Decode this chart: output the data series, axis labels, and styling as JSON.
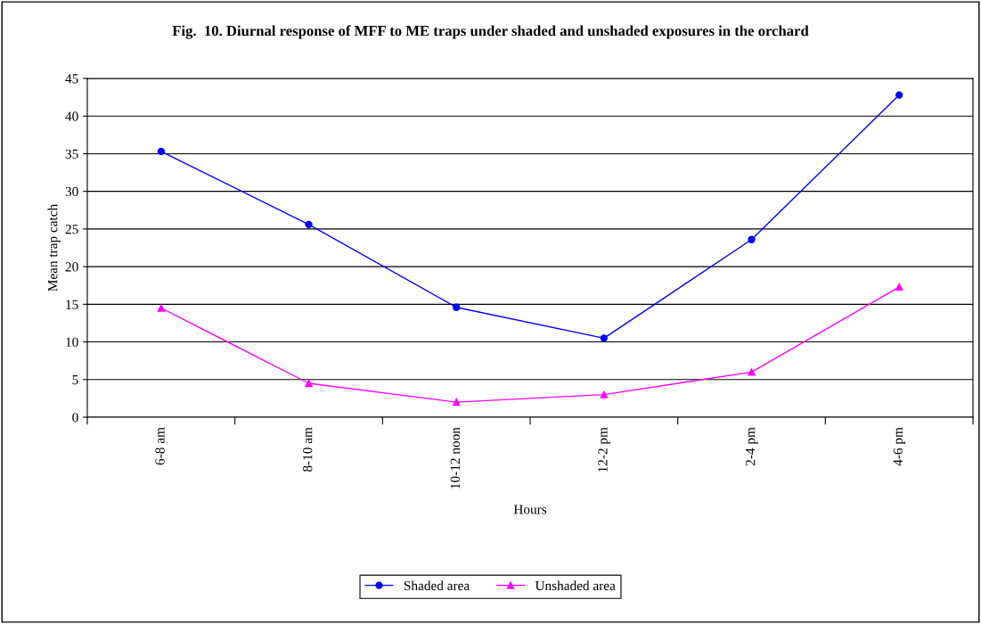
{
  "chart_data": {
    "type": "line",
    "title": "Fig.  10. Diurnal response of MFF to ME traps under shaded and unshaded exposures in the orchard",
    "xlabel": "Hours",
    "ylabel": "Mean trap catch",
    "categories": [
      "6-8 am",
      "8-10 am",
      "10-12 noon",
      "12-2 pm",
      "2-4 pm",
      "4-6 pm"
    ],
    "series": [
      {
        "name": "Shaded area",
        "color": "#0000ff",
        "marker": "circle",
        "values": [
          35.3,
          25.6,
          14.6,
          10.5,
          23.6,
          42.8
        ]
      },
      {
        "name": "Unshaded area",
        "color": "#ff00ff",
        "marker": "triangle",
        "values": [
          14.5,
          4.5,
          2.0,
          3.0,
          6.0,
          17.3
        ]
      }
    ],
    "ylim": [
      0,
      45
    ],
    "yticks": [
      0,
      5,
      10,
      15,
      20,
      25,
      30,
      35,
      40,
      45
    ],
    "grid": "y",
    "legend": "bottom",
    "line_style": "solid"
  }
}
